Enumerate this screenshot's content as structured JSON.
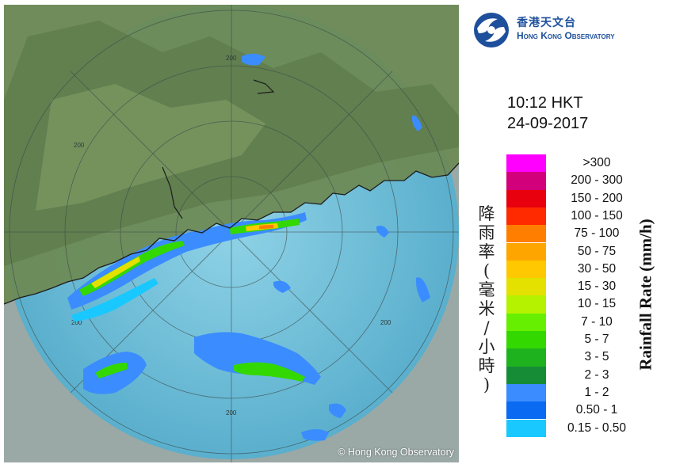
{
  "logo": {
    "chinese": "香港天文台",
    "english": "Hong Kong Observatory"
  },
  "timestamp": {
    "time": "10:12 HKT",
    "date": "24-09-2017"
  },
  "map": {
    "copyright": "© Hong Kong Observatory",
    "range_ring_labels": [
      "200",
      "200",
      "200",
      "200"
    ]
  },
  "legend": {
    "title_chinese": "降雨率(毫米/小時)",
    "title_english": "Rainfall Rate (mm/h)",
    "items": [
      {
        "label": ">300",
        "color": "#ff00ff"
      },
      {
        "label": "200 - 300",
        "color": "#d2007a"
      },
      {
        "label": "150 - 200",
        "color": "#e8000e"
      },
      {
        "label": "100 - 150",
        "color": "#ff2a00"
      },
      {
        "label": "75 - 100",
        "color": "#ff7e00"
      },
      {
        "label": "50 - 75",
        "color": "#ffa500"
      },
      {
        "label": "30 - 50",
        "color": "#ffc800"
      },
      {
        "label": "15 - 30",
        "color": "#e4e000"
      },
      {
        "label": "10 - 15",
        "color": "#b5f200"
      },
      {
        "label": "7 - 10",
        "color": "#66ef00"
      },
      {
        "label": "5 - 7",
        "color": "#33d800"
      },
      {
        "label": "3 - 5",
        "color": "#1fb21f"
      },
      {
        "label": "2 - 3",
        "color": "#168c37"
      },
      {
        "label": "1 - 2",
        "color": "#3b8cff"
      },
      {
        "label": "0.50 - 1",
        "color": "#0a6af2"
      },
      {
        "label": "0.15 - 0.50",
        "color": "#19c8ff"
      }
    ]
  }
}
